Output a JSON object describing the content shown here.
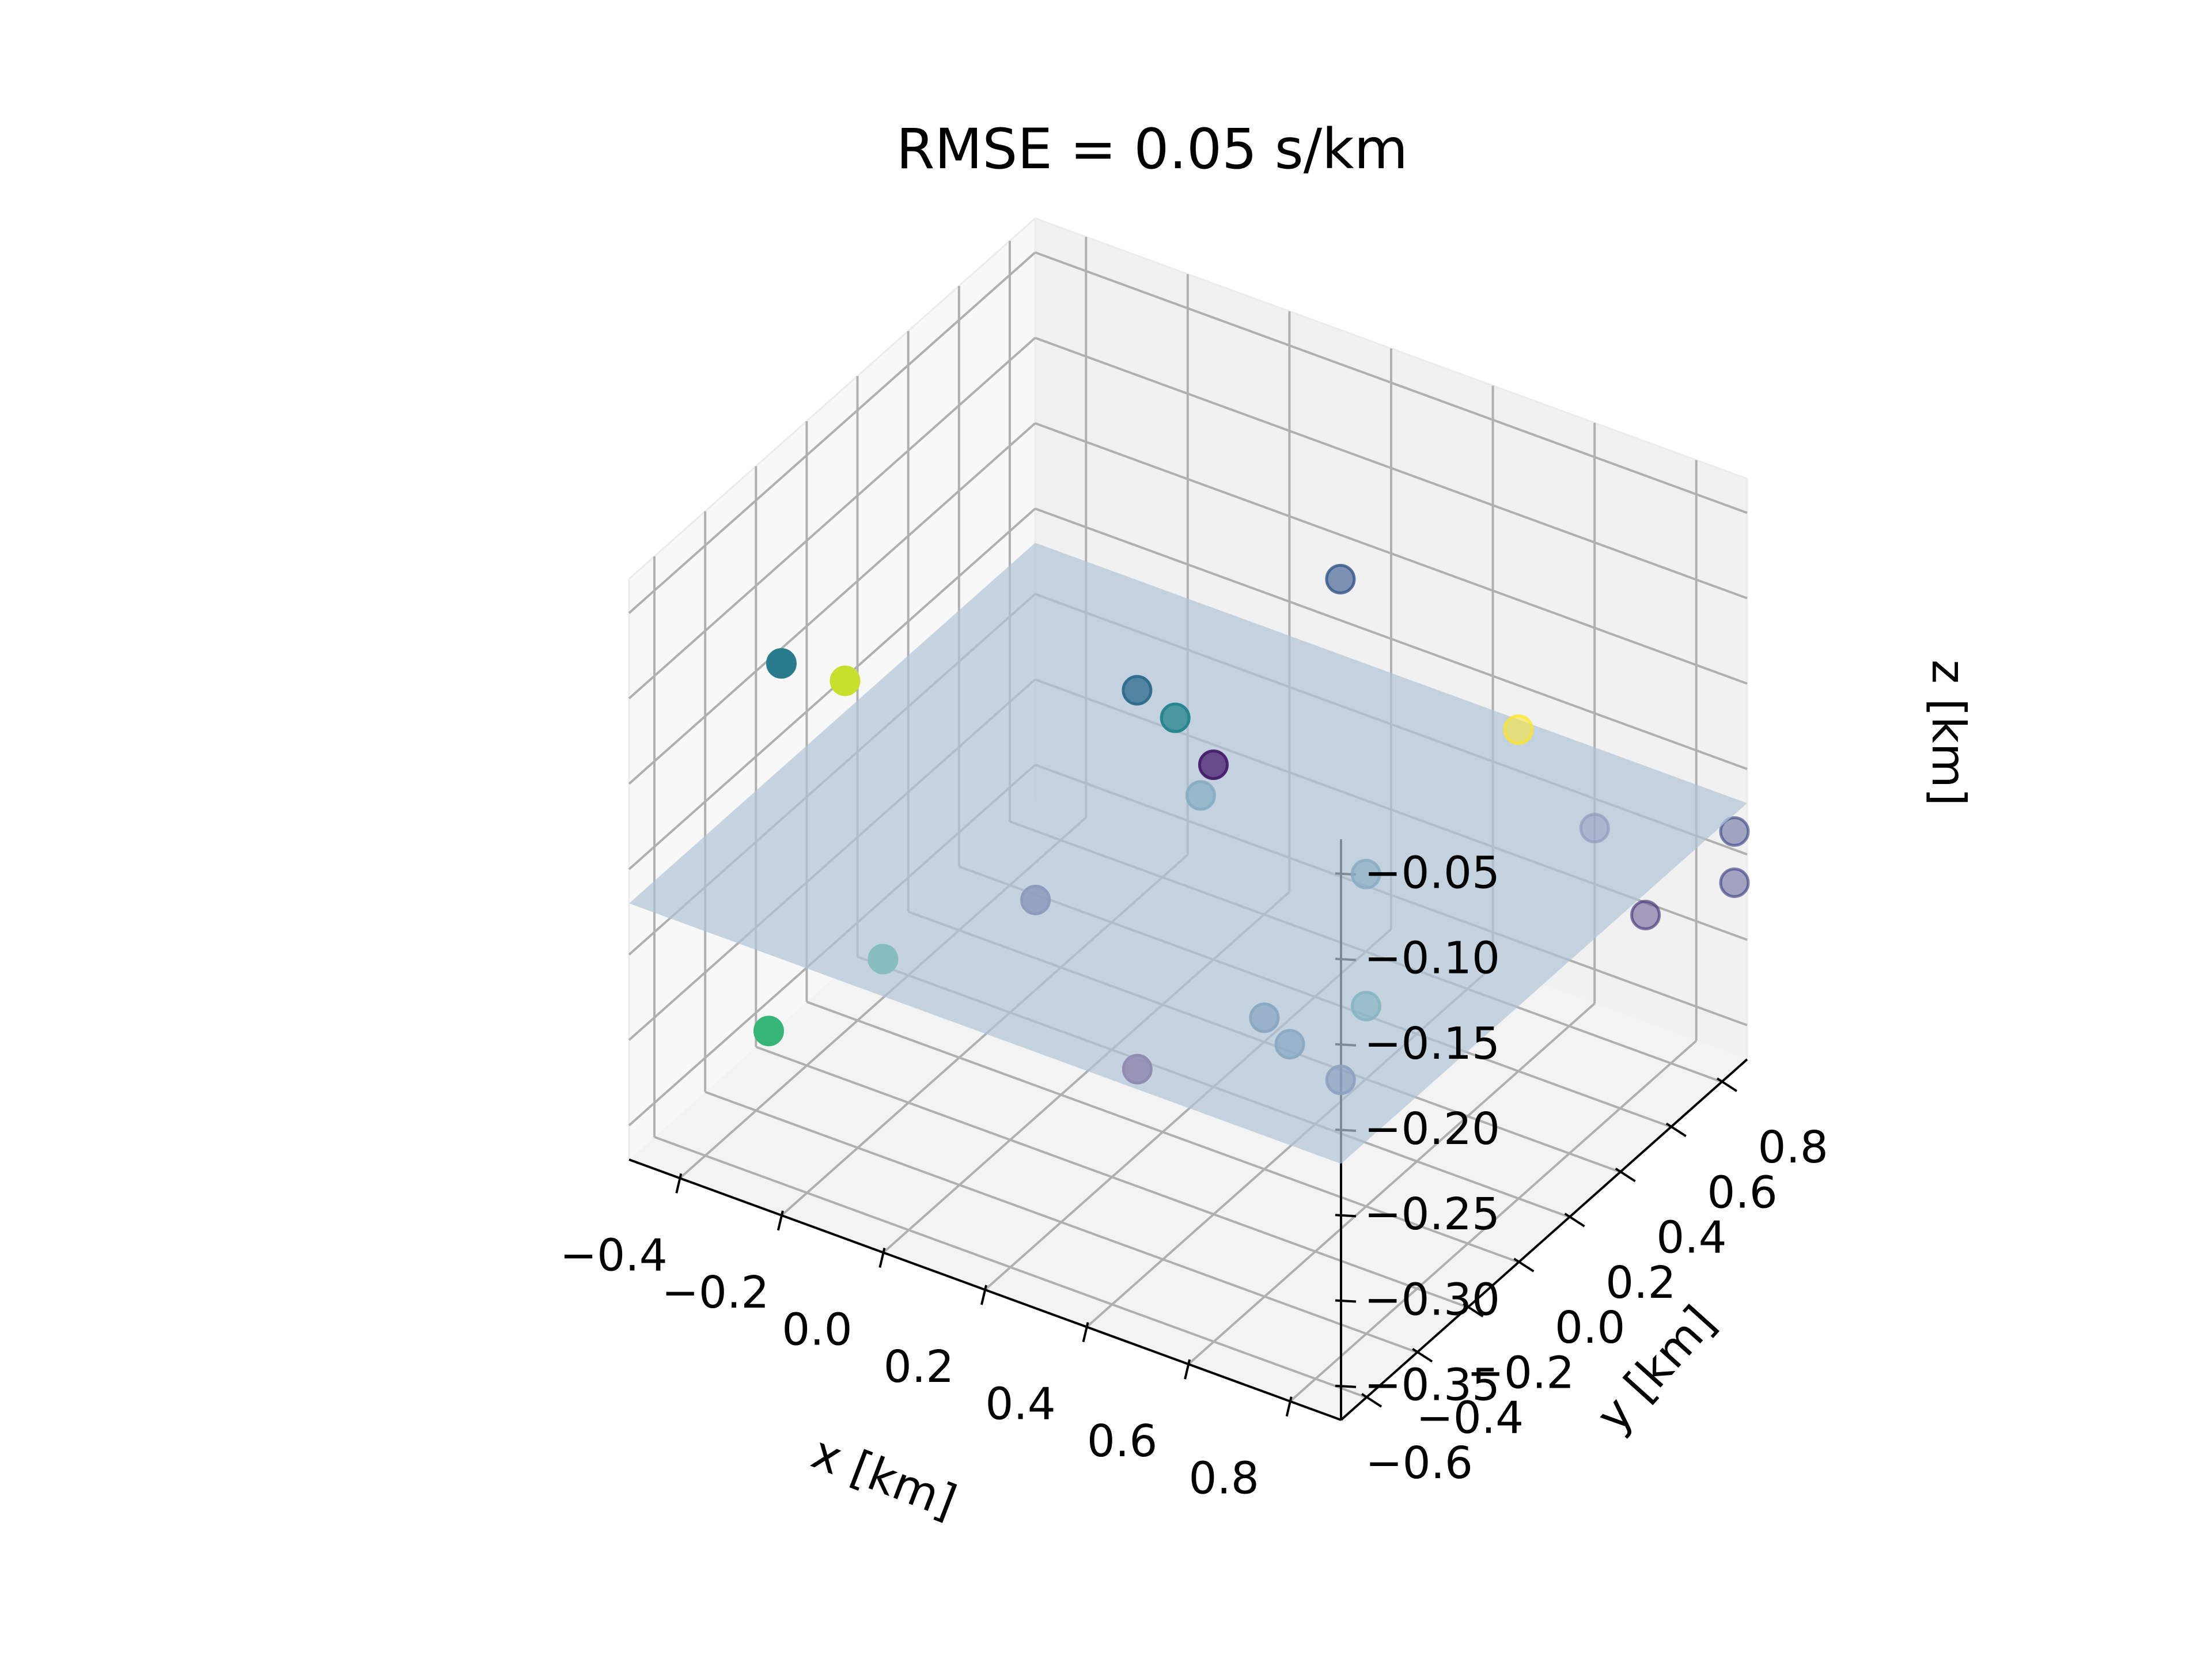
{
  "chart_data": {
    "type": "scatter",
    "title": "RMSE = 0.05 s/km",
    "xlabel": "x [km]",
    "ylabel": "y [km]",
    "zlabel": "z [km]",
    "xlim": [
      -0.5,
      0.9
    ],
    "ylim": [
      -0.7,
      0.9
    ],
    "zlim": [
      -0.37,
      -0.03
    ],
    "x_ticks": [
      -0.4,
      -0.2,
      0.0,
      0.2,
      0.4,
      0.6,
      0.8
    ],
    "y_ticks": [
      -0.6,
      -0.4,
      -0.2,
      0.0,
      0.2,
      0.4,
      0.6,
      0.8
    ],
    "z_ticks": [
      -0.35,
      -0.3,
      -0.25,
      -0.2,
      -0.15,
      -0.1,
      -0.05
    ],
    "x_tick_labels": [
      "−0.4",
      "−0.2",
      "0.0",
      "0.2",
      "0.4",
      "0.6",
      "0.8"
    ],
    "y_tick_labels": [
      "−0.6",
      "−0.4",
      "−0.2",
      "0.0",
      "0.2",
      "0.4",
      "0.6",
      "0.8"
    ],
    "z_tick_labels": [
      "−0.35",
      "−0.30",
      "−0.25",
      "−0.20",
      "−0.15",
      "−0.10",
      "−0.05"
    ],
    "grid": true,
    "colormap": "viridis",
    "plane": {
      "z": -0.22,
      "color": "#b0c4d8"
    },
    "points": [
      {
        "x": -0.2,
        "y": -0.45,
        "z": -0.09,
        "c": 0.92
      },
      {
        "x": -0.45,
        "y": -0.2,
        "z": -0.14,
        "c": 0.42
      },
      {
        "x": -0.4,
        "y": -0.35,
        "z": -0.33,
        "c": 0.66
      },
      {
        "x": -0.3,
        "y": -0.1,
        "z": -0.31,
        "c": 0.62
      },
      {
        "x": -0.1,
        "y": 0.1,
        "z": -0.28,
        "c": 0.18
      },
      {
        "x": 0.2,
        "y": -0.1,
        "z": -0.32,
        "c": 0.02
      },
      {
        "x": 0.05,
        "y": 0.35,
        "z": -0.19,
        "c": 0.45
      },
      {
        "x": 0.1,
        "y": 0.35,
        "z": -0.23,
        "c": 0.4
      },
      {
        "x": 0.15,
        "y": 0.3,
        "z": -0.2,
        "c": 0.08
      },
      {
        "x": -0.1,
        "y": 0.5,
        "z": -0.21,
        "c": 0.35
      },
      {
        "x": 0.25,
        "y": 0.6,
        "z": -0.12,
        "c": 0.28
      },
      {
        "x": 0.35,
        "y": 0.1,
        "z": -0.3,
        "c": 0.32
      },
      {
        "x": 0.4,
        "y": 0.1,
        "z": -0.31,
        "c": 0.35
      },
      {
        "x": 0.5,
        "y": 0.1,
        "z": -0.32,
        "c": 0.25
      },
      {
        "x": 0.4,
        "y": 0.4,
        "z": -0.25,
        "c": 0.38
      },
      {
        "x": 0.5,
        "y": 0.2,
        "z": -0.29,
        "c": 0.5
      },
      {
        "x": 0.6,
        "y": 0.6,
        "z": -0.17,
        "c": 1.0
      },
      {
        "x": 0.7,
        "y": 0.7,
        "z": -0.23,
        "c": 0.12
      },
      {
        "x": 0.8,
        "y": 0.7,
        "z": -0.27,
        "c": 0.15
      },
      {
        "x": 0.9,
        "y": 0.85,
        "z": -0.23,
        "c": 0.22
      },
      {
        "x": 0.9,
        "y": 0.85,
        "z": -0.26,
        "c": 0.2
      }
    ]
  }
}
